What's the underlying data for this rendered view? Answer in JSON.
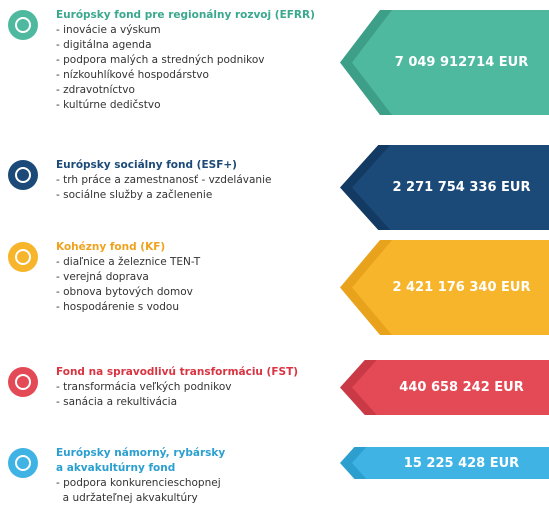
{
  "funds": [
    {
      "title": "Európsky fond pre regionálny rozvoj (EFRR)",
      "items": [
        "- inovácie a výskum",
        "- digitálna agenda",
        "- podpora malých a stredných podnikov",
        "- nízkouhlíkové hospodárstvo",
        "- zdravotníctvo",
        "- kultúrne dedičstvo"
      ],
      "amount": "7 049 912714 EUR"
    },
    {
      "title": "Európsky sociálny fond (ESF+)",
      "items": [
        "- trh práce a zamestnanosť - vzdelávanie",
        "- sociálne služby a začlenenie"
      ],
      "amount": "2 271 754 336 EUR"
    },
    {
      "title": "Kohézny fond (KF)",
      "items": [
        "- diaľnice a železnice TEN-T",
        "- verejná doprava",
        "- obnova bytových domov",
        "- hospodárenie s vodou"
      ],
      "amount": "2 421 176 340 EUR"
    },
    {
      "title": "Fond na spravodlivú transformáciu (FST)",
      "items": [
        "- transformácia veľkých podnikov",
        "- sanácia a rekultivácia"
      ],
      "amount": "440 658 242 EUR"
    },
    {
      "title": "Európsky námorný, rybársky\na akvakultúrny fond",
      "items": [
        "- podpora konkurencieschopnej",
        "  a udržateľnej akvakultúry"
      ],
      "amount": "15 225 428 EUR"
    }
  ]
}
